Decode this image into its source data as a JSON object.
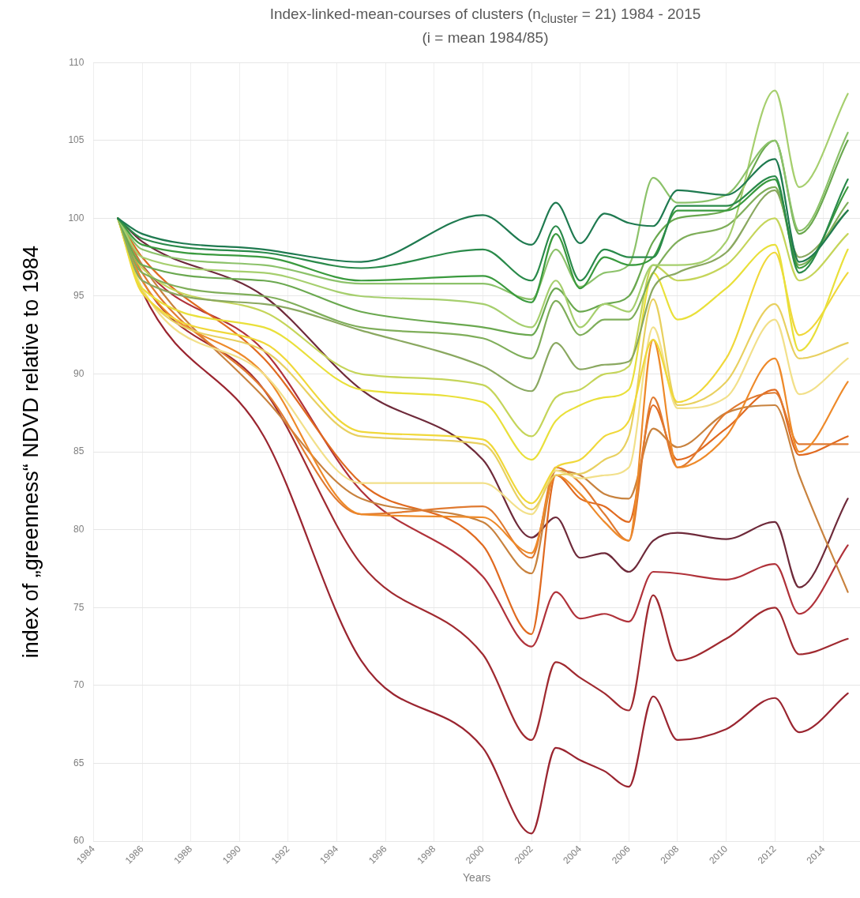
{
  "chart_data": {
    "type": "line",
    "title": "Index-linked-mean-courses of clusters (n$_{cluster}$ = 21) 1984 - 2015",
    "subtitle": "(i = mean 1984/85)",
    "xlabel": "Years",
    "ylabel": "index of „greenness“ NDVD relative to 1984",
    "x": [
      1985,
      1986,
      1991,
      1995,
      2000,
      2002,
      2003,
      2004,
      2005,
      2006,
      2007,
      2008,
      2010,
      2012,
      2013,
      2015
    ],
    "series": [
      {
        "color": "#1f7a50",
        "values": [
          100,
          99,
          98,
          97.2,
          100.2,
          98.3,
          101,
          98.4,
          100.3,
          99.7,
          99.5,
          101.8,
          101.5,
          103.8,
          97.2,
          100.5
        ]
      },
      {
        "color": "#2a8a4a",
        "values": [
          100,
          98.7,
          97.8,
          96.8,
          98,
          96,
          99.5,
          96,
          98,
          97.5,
          97.5,
          100.8,
          100.8,
          102.7,
          96.5,
          102.5
        ]
      },
      {
        "color": "#3a9a3e",
        "values": [
          100,
          98.3,
          97.5,
          96,
          96.3,
          94.6,
          99,
          95.5,
          97.5,
          97,
          97.5,
          100.5,
          100.5,
          102.5,
          96.8,
          102
        ]
      },
      {
        "color": "#8cc26a",
        "values": [
          100,
          98,
          97,
          95.8,
          95.8,
          94.8,
          98,
          95.6,
          96.5,
          97,
          102.6,
          101,
          101.5,
          105,
          99.2,
          105.5
        ]
      },
      {
        "color": "#a6cf6e",
        "values": [
          100,
          97.5,
          96.5,
          95,
          94.5,
          93,
          96,
          93,
          94.5,
          94,
          97,
          97,
          98.5,
          108.2,
          102,
          108
        ]
      },
      {
        "color": "#6aa84f",
        "values": [
          100,
          97,
          96,
          94,
          93,
          92.5,
          95.5,
          94,
          94.5,
          95,
          98.5,
          100,
          100.5,
          105,
          99,
          105
        ]
      },
      {
        "color": "#7fae5a",
        "values": [
          100,
          96.5,
          95,
          93,
          92.3,
          91,
          94.7,
          92.5,
          93.5,
          93.5,
          96.5,
          98.5,
          99.5,
          102,
          97,
          101
        ]
      },
      {
        "color": "#8aa860",
        "values": [
          100,
          96,
          94.5,
          92.8,
          90.5,
          88.9,
          92,
          90.3,
          90.6,
          90.8,
          95.5,
          96.5,
          97.8,
          101.8,
          97.5,
          100.5
        ]
      },
      {
        "color": "#c5d55a",
        "values": [
          100,
          96.8,
          94,
          90,
          89.3,
          86,
          88.5,
          89,
          90,
          90.5,
          97,
          96,
          97,
          100,
          96,
          99
        ]
      },
      {
        "color": "#e9e03a",
        "values": [
          100,
          95.5,
          93,
          89,
          88.2,
          84.5,
          87,
          88,
          88.5,
          89,
          96.5,
          93.5,
          95.5,
          98.3,
          91.5,
          98
        ]
      },
      {
        "color": "#f0d83a",
        "values": [
          100,
          95.2,
          92,
          86.3,
          85.8,
          81.7,
          84,
          84.5,
          86,
          87,
          92.2,
          88.2,
          91,
          97.8,
          92.5,
          96.5
        ]
      },
      {
        "color": "#e8d060",
        "values": [
          100,
          95.3,
          91.5,
          86,
          85.5,
          81.3,
          83.5,
          83.6,
          84.5,
          86,
          94.8,
          88,
          89.5,
          94.5,
          91,
          92
        ]
      },
      {
        "color": "#f2e08a",
        "values": [
          100,
          95.5,
          90,
          83,
          83,
          81,
          83.8,
          83.3,
          83.5,
          84,
          93,
          87.8,
          88.5,
          93.5,
          88.7,
          91
        ]
      },
      {
        "color": "#ee8a2a",
        "values": [
          100,
          96,
          90,
          81,
          80.8,
          78.5,
          83.5,
          82.3,
          80.5,
          79.3,
          92.2,
          84,
          86,
          91,
          85,
          89.5
        ]
      },
      {
        "color": "#e07a30",
        "values": [
          100,
          96.5,
          89,
          81,
          81.5,
          78.2,
          84,
          83,
          81,
          79.3,
          88.5,
          84,
          87.5,
          88.8,
          85.5,
          85.5
        ]
      },
      {
        "color": "#c8823e",
        "values": [
          100,
          97,
          88.5,
          82,
          80.5,
          77.2,
          83.8,
          83.5,
          82.3,
          82,
          86.5,
          85.3,
          87.5,
          88,
          83.5,
          76
        ]
      },
      {
        "color": "#e06a20",
        "values": [
          100,
          97.5,
          91,
          83,
          79,
          73.3,
          83.5,
          82,
          81.5,
          80.5,
          88,
          84.5,
          86.5,
          89,
          84.8,
          86
        ]
      },
      {
        "color": "#6e2a3a",
        "values": [
          100,
          98.5,
          95,
          89,
          84.5,
          79.5,
          80.8,
          78.2,
          78.5,
          77.3,
          79.3,
          79.8,
          79.4,
          80.5,
          76.3,
          82
        ]
      },
      {
        "color": "#b0323a",
        "values": [
          100,
          97,
          91.5,
          82.5,
          77,
          72.5,
          76,
          74.3,
          74.6,
          74.1,
          77.3,
          77.2,
          76.8,
          77.8,
          74.6,
          79
        ]
      },
      {
        "color": "#a02a30",
        "values": [
          100,
          96,
          89,
          77.8,
          72,
          66.5,
          71.5,
          70.5,
          69.5,
          68.4,
          75.8,
          71.6,
          73,
          75,
          72,
          73
        ]
      },
      {
        "color": "#9a2530",
        "values": [
          100,
          95.3,
          86,
          71.6,
          66,
          60.5,
          66,
          65.2,
          64.5,
          63.5,
          69.3,
          66.5,
          67.2,
          69.2,
          67,
          69.5
        ]
      }
    ],
    "xlim": [
      1984,
      2015.5
    ],
    "xticks": [
      1984,
      1986,
      1988,
      1990,
      1992,
      1994,
      1996,
      1998,
      2000,
      2002,
      2004,
      2006,
      2008,
      2010,
      2012,
      2014
    ],
    "ylim": [
      60,
      110
    ],
    "yticks": [
      60,
      65,
      70,
      75,
      80,
      85,
      90,
      95,
      100,
      105,
      110
    ],
    "grid": true,
    "legend": false,
    "marker": "none",
    "line_style": "solid"
  }
}
